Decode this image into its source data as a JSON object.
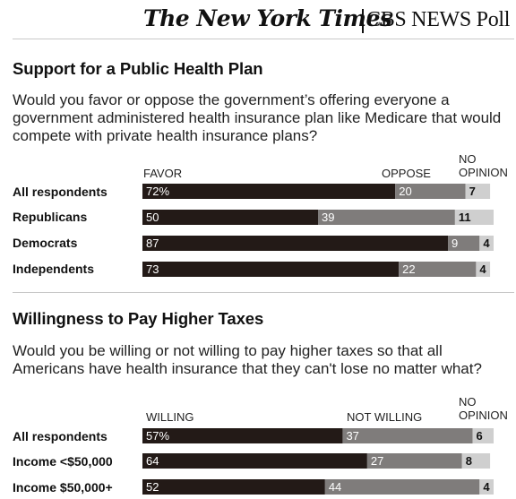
{
  "masthead": {
    "paper": "The New York Times",
    "poll": "CBS NEWS Poll"
  },
  "colors": {
    "favor": "#231a17",
    "oppose": "#7f7c7b",
    "no_opinion": "#cfcfcf"
  },
  "chart_data": [
    {
      "type": "bar",
      "stacked": true,
      "orientation": "horizontal",
      "title": "Support for a Public Health Plan",
      "question": "Would you favor or oppose the government’s offering everyone a government administered health insurance plan like Medicare that would compete with private health insurance plans?",
      "col_headers": [
        "FAVOR",
        "OPPOSE",
        "NO OPINION"
      ],
      "categories": [
        "All respondents",
        "Republicans",
        "Democrats",
        "Independents"
      ],
      "series": [
        {
          "name": "FAVOR",
          "values": [
            72,
            50,
            87,
            73
          ],
          "labels": [
            "72%",
            "50",
            "87",
            "73"
          ]
        },
        {
          "name": "OPPOSE",
          "values": [
            20,
            39,
            9,
            22
          ],
          "labels": [
            "20",
            "39",
            "9",
            "22"
          ]
        },
        {
          "name": "NO OPINION",
          "values": [
            7,
            11,
            4,
            4
          ],
          "labels": [
            "7",
            "11",
            "4",
            "4"
          ]
        }
      ],
      "xlim": [
        0,
        100
      ]
    },
    {
      "type": "bar",
      "stacked": true,
      "orientation": "horizontal",
      "title": "Willingness to Pay Higher Taxes",
      "question": "Would you be willing or not willing to pay higher taxes so that all Americans have health insurance that they can't lose no matter what?",
      "col_headers": [
        "WILLING",
        "NOT WILLING",
        "NO OPINION"
      ],
      "categories": [
        "All respondents",
        "Income <$50,000",
        "Income $50,000+"
      ],
      "series": [
        {
          "name": "WILLING",
          "values": [
            57,
            64,
            52
          ],
          "labels": [
            "57%",
            "64",
            "52"
          ]
        },
        {
          "name": "NOT WILLING",
          "values": [
            37,
            27,
            44
          ],
          "labels": [
            "37",
            "27",
            "44"
          ]
        },
        {
          "name": "NO OPINION",
          "values": [
            6,
            8,
            4
          ],
          "labels": [
            "6",
            "8",
            "4"
          ]
        }
      ],
      "xlim": [
        0,
        100
      ]
    }
  ]
}
